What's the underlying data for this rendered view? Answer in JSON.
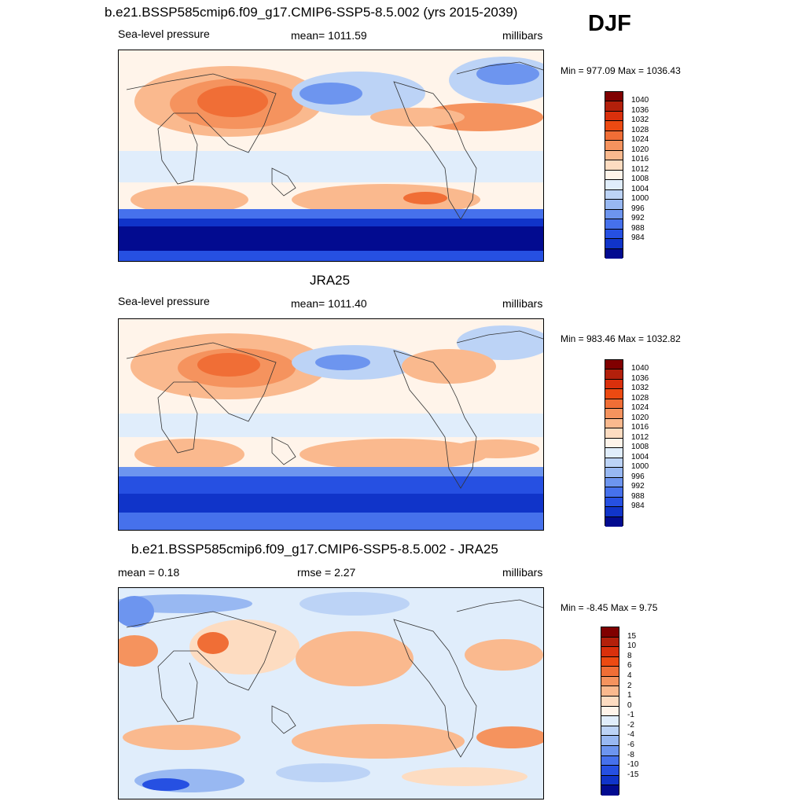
{
  "header": {
    "season": "DJF"
  },
  "panels": [
    {
      "id": "model",
      "title": "b.e21.BSSP585cmip6.f09_g17.CMIP6-SSP5-8.5.002 (yrs 2015-2039)",
      "left": "Sea-level pressure",
      "center": "mean= 1011.59",
      "right": "millibars",
      "minmax": "Min = 977.09 Max = 1036.43",
      "colorbar": {
        "labels": [
          "1040",
          "1036",
          "1032",
          "1028",
          "1024",
          "1020",
          "1016",
          "1012",
          "1008",
          "1004",
          "1000",
          "996",
          "992",
          "988",
          "984"
        ],
        "colors": [
          "#800000",
          "#b3200b",
          "#d9300c",
          "#ec4a12",
          "#f06e36",
          "#f5935e",
          "#fab98e",
          "#fddcc1",
          "#fff4ea",
          "#e0edfb",
          "#bcd3f6",
          "#98b8f2",
          "#6d95ef",
          "#4671ec",
          "#2650e2",
          "#1034c9",
          "#020b90"
        ]
      }
    },
    {
      "id": "obs",
      "title": "JRA25",
      "left": "Sea-level pressure",
      "center": "mean= 1011.40",
      "right": "millibars",
      "minmax": "Min = 983.46 Max = 1032.82",
      "colorbar": {
        "labels": [
          "1040",
          "1036",
          "1032",
          "1028",
          "1024",
          "1020",
          "1016",
          "1012",
          "1008",
          "1004",
          "1000",
          "996",
          "992",
          "988",
          "984"
        ],
        "colors": [
          "#800000",
          "#b3200b",
          "#d9300c",
          "#ec4a12",
          "#f06e36",
          "#f5935e",
          "#fab98e",
          "#fddcc1",
          "#fff4ea",
          "#e0edfb",
          "#bcd3f6",
          "#98b8f2",
          "#6d95ef",
          "#4671ec",
          "#2650e2",
          "#1034c9",
          "#020b90"
        ]
      }
    },
    {
      "id": "diff",
      "title": "b.e21.BSSP585cmip6.f09_g17.CMIP6-SSP5-8.5.002 - JRA25",
      "left": "mean =   0.18",
      "center": "rmse =   2.27",
      "right": "millibars",
      "minmax": "Min =  -8.45 Max =   9.75",
      "colorbar": {
        "labels": [
          "15",
          "10",
          "8",
          "6",
          "4",
          "2",
          "1",
          "0",
          "-1",
          "-2",
          "-4",
          "-6",
          "-8",
          "-10",
          "-15"
        ],
        "colors": [
          "#800000",
          "#b3200b",
          "#d9300c",
          "#ec4a12",
          "#f06e36",
          "#f5935e",
          "#fab98e",
          "#fddcc1",
          "#fff4ea",
          "#e0edfb",
          "#bcd3f6",
          "#98b8f2",
          "#6d95ef",
          "#4671ec",
          "#2650e2",
          "#1034c9",
          "#020b90"
        ]
      }
    }
  ]
}
